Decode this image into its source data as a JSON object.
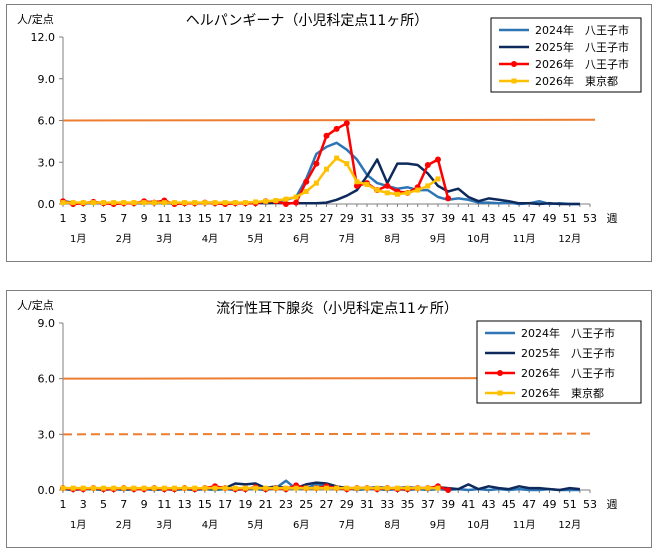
{
  "chart_data": [
    {
      "type": "line",
      "title": "ヘルパンギーナ（小児科定点11ヶ所）",
      "ylabel": "人/定点",
      "xlabel": "週",
      "ylim": [
        0,
        12
      ],
      "yticks": [
        "0.0",
        "3.0",
        "6.0",
        "9.0",
        "12.0"
      ],
      "ytick_values": [
        0,
        3,
        6,
        9,
        12
      ],
      "xticks": [
        1,
        3,
        5,
        7,
        9,
        11,
        13,
        15,
        17,
        19,
        21,
        23,
        25,
        27,
        29,
        31,
        33,
        35,
        37,
        39,
        41,
        43,
        45,
        47,
        49,
        51,
        53
      ],
      "months": [
        {
          "label": "1月",
          "week": 2.5
        },
        {
          "label": "2月",
          "week": 7
        },
        {
          "label": "3月",
          "week": 11
        },
        {
          "label": "4月",
          "week": 15.5
        },
        {
          "label": "5月",
          "week": 20
        },
        {
          "label": "6月",
          "week": 24.5
        },
        {
          "label": "7月",
          "week": 29
        },
        {
          "label": "8月",
          "week": 33.5
        },
        {
          "label": "9月",
          "week": 38
        },
        {
          "label": "10月",
          "week": 42
        },
        {
          "label": "11月",
          "week": 46.5
        },
        {
          "label": "12月",
          "week": 51
        }
      ],
      "hlines": [
        {
          "value": 6.0,
          "style": "solid",
          "color": "#ed7d31"
        }
      ],
      "series": [
        {
          "name": "2024年　八王子市",
          "color": "#2e75b6",
          "marker": "none",
          "x": [
            1,
            2,
            3,
            4,
            5,
            6,
            7,
            8,
            9,
            10,
            11,
            12,
            13,
            14,
            15,
            16,
            17,
            18,
            19,
            20,
            21,
            22,
            23,
            24,
            25,
            26,
            27,
            28,
            29,
            30,
            31,
            32,
            33,
            34,
            35,
            36,
            37,
            38,
            39,
            40,
            41,
            42,
            43,
            44,
            45,
            46,
            47,
            48,
            49,
            50,
            51,
            52
          ],
          "values": [
            0.1,
            0.1,
            0.05,
            0.1,
            0.1,
            0.05,
            0.1,
            0.05,
            0.1,
            0.1,
            0.05,
            0.1,
            0.05,
            0.05,
            0.1,
            0.05,
            0.1,
            0.1,
            0.05,
            0.1,
            0.1,
            0.2,
            0.3,
            0.5,
            1.8,
            3.6,
            4.1,
            4.4,
            3.9,
            3.2,
            2.1,
            1.5,
            1.3,
            1.1,
            1.2,
            1.0,
            1.0,
            0.5,
            0.3,
            0.4,
            0.3,
            0.1,
            0.1,
            0.05,
            0.1,
            0.0,
            0.05,
            0.2,
            0.0,
            0.05,
            0.0,
            0.0
          ]
        },
        {
          "name": "2025年　八王子市",
          "color": "#0e2a5c",
          "marker": "none",
          "x": [
            1,
            2,
            3,
            4,
            5,
            6,
            7,
            8,
            9,
            10,
            11,
            12,
            13,
            14,
            15,
            16,
            17,
            18,
            19,
            20,
            21,
            22,
            23,
            24,
            25,
            26,
            27,
            28,
            29,
            30,
            31,
            32,
            33,
            34,
            35,
            36,
            37,
            38,
            39,
            40,
            41,
            42,
            43,
            44,
            45,
            46,
            47,
            48,
            49,
            50,
            51,
            52
          ],
          "values": [
            0.2,
            0.1,
            0.05,
            0.1,
            0.05,
            0.1,
            0.05,
            0.1,
            0.05,
            0.2,
            0.1,
            0.05,
            0.1,
            0.05,
            0.1,
            0.1,
            0.05,
            0.1,
            0.05,
            0.1,
            0.05,
            0.1,
            0.05,
            0.05,
            0.05,
            0.05,
            0.1,
            0.3,
            0.6,
            1.0,
            2.0,
            3.2,
            1.5,
            2.9,
            2.9,
            2.8,
            2.2,
            1.3,
            0.9,
            1.1,
            0.5,
            0.2,
            0.4,
            0.3,
            0.2,
            0.05,
            0.05,
            0.0,
            0.05,
            0.0,
            0.0,
            0.0
          ]
        },
        {
          "name": "2026年　八王子市",
          "color": "#ff0000",
          "marker": "circle",
          "x": [
            1,
            2,
            3,
            4,
            5,
            6,
            7,
            8,
            9,
            10,
            11,
            12,
            13,
            14,
            15,
            16,
            17,
            18,
            19,
            20,
            21,
            22,
            23,
            24,
            25,
            26,
            27,
            28,
            29,
            30,
            31,
            32,
            33,
            34,
            35,
            36,
            37,
            38,
            39
          ],
          "values": [
            0.2,
            0.0,
            0.05,
            0.15,
            0.05,
            0.0,
            0.05,
            0.05,
            0.2,
            0.1,
            0.25,
            0.0,
            0.05,
            0.05,
            0.1,
            0.05,
            0.0,
            0.05,
            0.05,
            0.05,
            0.2,
            0.2,
            0.0,
            0.1,
            1.6,
            2.9,
            4.9,
            5.4,
            5.8,
            1.3,
            1.5,
            1.0,
            1.3,
            0.9,
            0.8,
            1.2,
            2.8,
            3.2,
            0.4
          ]
        },
        {
          "name": "2026年　東京都",
          "color": "#ffc000",
          "marker": "square",
          "x": [
            1,
            2,
            3,
            4,
            5,
            6,
            7,
            8,
            9,
            10,
            11,
            12,
            13,
            14,
            15,
            16,
            17,
            18,
            19,
            20,
            21,
            22,
            23,
            24,
            25,
            26,
            27,
            28,
            29,
            30,
            31,
            32,
            33,
            34,
            35,
            36,
            37,
            38
          ],
          "values": [
            0.1,
            0.1,
            0.1,
            0.1,
            0.1,
            0.1,
            0.1,
            0.1,
            0.1,
            0.1,
            0.1,
            0.1,
            0.1,
            0.1,
            0.1,
            0.1,
            0.1,
            0.1,
            0.1,
            0.15,
            0.2,
            0.25,
            0.35,
            0.5,
            0.9,
            1.5,
            2.5,
            3.3,
            2.9,
            1.6,
            1.4,
            1.0,
            0.8,
            0.7,
            0.8,
            1.0,
            1.3,
            1.8
          ]
        }
      ]
    },
    {
      "type": "line",
      "title": "流行性耳下腺炎（小児科定点11ヶ所）",
      "ylabel": "人/定点",
      "xlabel": "週",
      "ylim": [
        0,
        9
      ],
      "yticks": [
        "0.0",
        "3.0",
        "6.0",
        "9.0"
      ],
      "ytick_values": [
        0,
        3,
        6,
        9
      ],
      "xticks": [
        1,
        3,
        5,
        7,
        9,
        11,
        13,
        15,
        17,
        19,
        21,
        23,
        25,
        27,
        29,
        31,
        33,
        35,
        37,
        39,
        41,
        43,
        45,
        47,
        49,
        51,
        53
      ],
      "months": [
        {
          "label": "1月",
          "week": 2.5
        },
        {
          "label": "2月",
          "week": 7
        },
        {
          "label": "3月",
          "week": 11
        },
        {
          "label": "4月",
          "week": 15.5
        },
        {
          "label": "5月",
          "week": 20
        },
        {
          "label": "6月",
          "week": 24.5
        },
        {
          "label": "7月",
          "week": 29
        },
        {
          "label": "8月",
          "week": 33.5
        },
        {
          "label": "9月",
          "week": 38
        },
        {
          "label": "10月",
          "week": 42
        },
        {
          "label": "11月",
          "week": 46.5
        },
        {
          "label": "12月",
          "week": 51
        }
      ],
      "hlines": [
        {
          "value": 6.0,
          "style": "solid",
          "color": "#ed7d31"
        },
        {
          "value": 3.0,
          "style": "dashed",
          "color": "#ed7d31"
        }
      ],
      "series": [
        {
          "name": "2024年　八王子市",
          "color": "#2e75b6",
          "marker": "none",
          "x": [
            1,
            2,
            3,
            4,
            5,
            6,
            7,
            8,
            9,
            10,
            11,
            12,
            13,
            14,
            15,
            16,
            17,
            18,
            19,
            20,
            21,
            22,
            23,
            24,
            25,
            26,
            27,
            28,
            29,
            30,
            31,
            32,
            33,
            34,
            35,
            36,
            37,
            38,
            39,
            40,
            41,
            42,
            43,
            44,
            45,
            46,
            47,
            48,
            49,
            50,
            51,
            52
          ],
          "values": [
            0.05,
            0.0,
            0.05,
            0.05,
            0.0,
            0.05,
            0.0,
            0.05,
            0.05,
            0.0,
            0.05,
            0.0,
            0.05,
            0.0,
            0.05,
            0.0,
            0.05,
            0.0,
            0.05,
            0.05,
            0.0,
            0.1,
            0.5,
            0.05,
            0.1,
            0.3,
            0.2,
            0.05,
            0.1,
            0.0,
            0.05,
            0.05,
            0.0,
            0.05,
            0.0,
            0.05,
            0.0,
            0.05,
            0.0,
            0.05,
            0.0,
            0.05,
            0.0,
            0.05,
            0.0,
            0.05,
            0.0,
            0.0,
            0.05,
            0.0,
            0.0,
            0.0
          ]
        },
        {
          "name": "2025年　八王子市",
          "color": "#0e2a5c",
          "marker": "none",
          "x": [
            1,
            2,
            3,
            4,
            5,
            6,
            7,
            8,
            9,
            10,
            11,
            12,
            13,
            14,
            15,
            16,
            17,
            18,
            19,
            20,
            21,
            22,
            23,
            24,
            25,
            26,
            27,
            28,
            29,
            30,
            31,
            32,
            33,
            34,
            35,
            36,
            37,
            38,
            39,
            40,
            41,
            42,
            43,
            44,
            45,
            46,
            47,
            48,
            49,
            50,
            51,
            52
          ],
          "values": [
            0.05,
            0.05,
            0.1,
            0.05,
            0.05,
            0.1,
            0.05,
            0.05,
            0.1,
            0.05,
            0.05,
            0.1,
            0.05,
            0.05,
            0.1,
            0.05,
            0.1,
            0.35,
            0.3,
            0.35,
            0.1,
            0.2,
            0.1,
            0.1,
            0.3,
            0.4,
            0.35,
            0.2,
            0.1,
            0.1,
            0.1,
            0.15,
            0.1,
            0.1,
            0.15,
            0.1,
            0.1,
            0.15,
            0.1,
            0.05,
            0.3,
            0.05,
            0.2,
            0.1,
            0.05,
            0.2,
            0.1,
            0.1,
            0.05,
            0.0,
            0.1,
            0.05
          ]
        },
        {
          "name": "2026年　八王子市",
          "color": "#ff0000",
          "marker": "circle",
          "x": [
            1,
            2,
            3,
            4,
            5,
            6,
            7,
            8,
            9,
            10,
            11,
            12,
            13,
            14,
            15,
            16,
            17,
            18,
            19,
            20,
            21,
            22,
            23,
            24,
            25,
            26,
            27,
            28,
            29,
            30,
            31,
            32,
            33,
            34,
            35,
            36,
            37,
            38,
            39
          ],
          "values": [
            0.1,
            0.05,
            0.05,
            0.1,
            0.05,
            0.05,
            0.1,
            0.05,
            0.05,
            0.1,
            0.05,
            0.05,
            0.1,
            0.05,
            0.1,
            0.2,
            0.1,
            0.05,
            0.05,
            0.15,
            0.05,
            0.1,
            0.05,
            0.25,
            0.1,
            0.1,
            0.2,
            0.1,
            0.05,
            0.1,
            0.1,
            0.05,
            0.1,
            0.05,
            0.05,
            0.1,
            0.1,
            0.2,
            0.0
          ]
        },
        {
          "name": "2026年　東京都",
          "color": "#ffc000",
          "marker": "square",
          "x": [
            1,
            2,
            3,
            4,
            5,
            6,
            7,
            8,
            9,
            10,
            11,
            12,
            13,
            14,
            15,
            16,
            17,
            18,
            19,
            20,
            21,
            22,
            23,
            24,
            25,
            26,
            27,
            28,
            29,
            30,
            31,
            32,
            33,
            34,
            35,
            36,
            37,
            38
          ],
          "values": [
            0.1,
            0.1,
            0.1,
            0.1,
            0.1,
            0.1,
            0.1,
            0.1,
            0.1,
            0.1,
            0.1,
            0.1,
            0.1,
            0.1,
            0.1,
            0.1,
            0.1,
            0.1,
            0.1,
            0.1,
            0.1,
            0.1,
            0.1,
            0.1,
            0.1,
            0.1,
            0.1,
            0.1,
            0.1,
            0.1,
            0.1,
            0.1,
            0.1,
            0.1,
            0.1,
            0.1,
            0.1,
            0.1
          ]
        }
      ]
    }
  ]
}
